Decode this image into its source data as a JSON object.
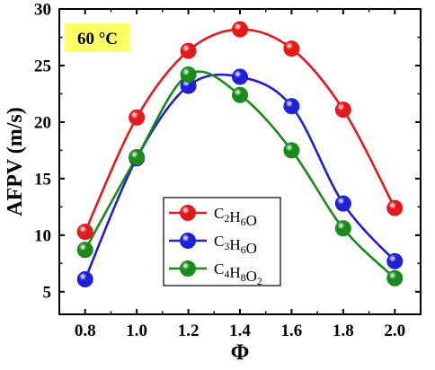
{
  "chart_data": {
    "type": "line",
    "title": "",
    "annotation": "60 °C",
    "annotation_bg": "#ffff66",
    "xlabel": "Φ",
    "ylabel": "AFPV (m/s)",
    "xlim": [
      0.7,
      2.1
    ],
    "ylim": [
      3,
      30
    ],
    "xticks": [
      0.8,
      1.0,
      1.2,
      1.4,
      1.6,
      1.8,
      2.0
    ],
    "xtick_labels": [
      "0.8",
      "1.0",
      "1.2",
      "1.4",
      "1.6",
      "1.8",
      "2.0"
    ],
    "yticks": [
      5,
      10,
      15,
      20,
      25,
      30
    ],
    "ytick_labels": [
      "5",
      "10",
      "15",
      "20",
      "25",
      "30"
    ],
    "grid": false,
    "legend_position": "center-left",
    "x": [
      0.8,
      1.0,
      1.2,
      1.4,
      1.6,
      1.8,
      2.0
    ],
    "series": [
      {
        "name": "C2H6O",
        "name_parts": [
          [
            "C",
            false
          ],
          [
            "2",
            true
          ],
          [
            "H",
            false
          ],
          [
            "6",
            true
          ],
          [
            "O",
            false
          ]
        ],
        "color": "#e31a1c",
        "values": [
          10.3,
          20.4,
          26.3,
          28.2,
          26.5,
          21.1,
          12.4
        ]
      },
      {
        "name": "C3H6O",
        "name_parts": [
          [
            "C",
            false
          ],
          [
            "3",
            true
          ],
          [
            "H",
            false
          ],
          [
            "6",
            true
          ],
          [
            "O",
            false
          ]
        ],
        "color": "#1f1fd6",
        "values": [
          6.1,
          16.8,
          23.2,
          24.0,
          21.4,
          12.8,
          7.7
        ]
      },
      {
        "name": "C4H8O2",
        "name_parts": [
          [
            "C",
            false
          ],
          [
            "4",
            true
          ],
          [
            "H",
            false
          ],
          [
            "8",
            true
          ],
          [
            "O",
            false
          ],
          [
            "2",
            true
          ]
        ],
        "color": "#1a8a1a",
        "values": [
          8.7,
          16.9,
          24.2,
          22.4,
          17.5,
          10.6,
          6.2
        ]
      }
    ]
  }
}
